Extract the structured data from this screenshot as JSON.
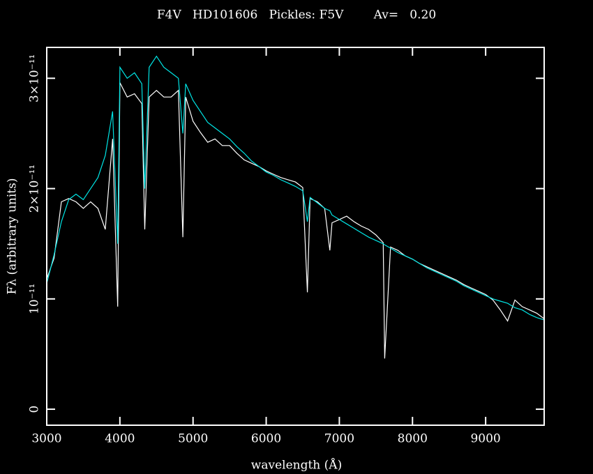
{
  "chart_data": {
    "type": "line",
    "title": "F4V   HD101606   Pickles: F5V        Av=   0.20",
    "x_label": "wavelength (Å)",
    "y_label": "Fλ (arbitrary units)",
    "xlim": [
      3000,
      9800
    ],
    "ylim": [
      -1.45e-12,
      3.28e-11
    ],
    "xticks": [
      3000,
      4000,
      5000,
      6000,
      7000,
      8000,
      9000
    ],
    "yticks": [
      0,
      {
        "value": 1e-11,
        "label": "10⁻¹¹"
      },
      {
        "value": 2e-11,
        "label": "2×10⁻¹¹"
      },
      {
        "value": 3e-11,
        "label": "3×10⁻¹¹"
      }
    ],
    "x": [
      3000,
      3100,
      3200,
      3300,
      3400,
      3500,
      3600,
      3700,
      3800,
      3900,
      3970,
      4000,
      4100,
      4200,
      4300,
      4340,
      4400,
      4500,
      4600,
      4700,
      4800,
      4861,
      4900,
      5000,
      5100,
      5200,
      5300,
      5400,
      5500,
      5600,
      5700,
      5800,
      5900,
      6000,
      6100,
      6200,
      6300,
      6400,
      6500,
      6563,
      6600,
      6700,
      6800,
      6870,
      6900,
      7000,
      7100,
      7200,
      7300,
      7400,
      7500,
      7600,
      7620,
      7700,
      7800,
      7900,
      8000,
      8100,
      8200,
      8300,
      8400,
      8500,
      8600,
      8700,
      8800,
      8900,
      9000,
      9100,
      9200,
      9300,
      9400,
      9500,
      9600,
      9700,
      9800
    ],
    "series": [
      {
        "color": "#ffffff",
        "values": [
          1.18e-11,
          1.37e-11,
          1.88e-11,
          1.91e-11,
          1.88e-11,
          1.82e-11,
          1.88e-11,
          1.82e-11,
          1.63e-11,
          2.45e-11,
          9.3e-12,
          2.96e-11,
          2.83e-11,
          2.86e-11,
          2.77e-11,
          1.63e-11,
          2.83e-11,
          2.89e-11,
          2.83e-11,
          2.83e-11,
          2.89e-11,
          1.56e-11,
          2.83e-11,
          2.61e-11,
          2.51e-11,
          2.42e-11,
          2.45e-11,
          2.39e-11,
          2.39e-11,
          2.32e-11,
          2.26e-11,
          2.23e-11,
          2.2e-11,
          2.16e-11,
          2.13e-11,
          2.1e-11,
          2.08e-11,
          2.06e-11,
          2.01e-11,
          1.06e-11,
          1.91e-11,
          1.88e-11,
          1.82e-11,
          1.44e-11,
          1.69e-11,
          1.72e-11,
          1.75e-11,
          1.7e-11,
          1.66e-11,
          1.63e-11,
          1.58e-11,
          1.51e-11,
          4.6e-12,
          1.47e-11,
          1.44e-11,
          1.39e-11,
          1.36e-11,
          1.32e-11,
          1.29e-11,
          1.26e-11,
          1.23e-11,
          1.2e-11,
          1.17e-11,
          1.13e-11,
          1.1e-11,
          1.07e-11,
          1.04e-11,
          9.9e-12,
          9e-12,
          8e-12,
          9.9e-12,
          9.3e-12,
          9e-12,
          8.7e-12,
          8.2e-12
        ]
      },
      {
        "color": "#00e5e5",
        "values": [
          1.14e-11,
          1.4e-11,
          1.7e-11,
          1.9e-11,
          1.95e-11,
          1.9e-11,
          2e-11,
          2.1e-11,
          2.3e-11,
          2.7e-11,
          1.5e-11,
          3.1e-11,
          3e-11,
          3.05e-11,
          2.95e-11,
          2e-11,
          3.1e-11,
          3.2e-11,
          3.1e-11,
          3.05e-11,
          3e-11,
          2.5e-11,
          2.95e-11,
          2.8e-11,
          2.7e-11,
          2.6e-11,
          2.55e-11,
          2.5e-11,
          2.45e-11,
          2.38e-11,
          2.32e-11,
          2.25e-11,
          2.2e-11,
          2.15e-11,
          2.12e-11,
          2.08e-11,
          2.05e-11,
          2.02e-11,
          1.98e-11,
          1.7e-11,
          1.92e-11,
          1.87e-11,
          1.82e-11,
          1.8e-11,
          1.76e-11,
          1.72e-11,
          1.68e-11,
          1.64e-11,
          1.6e-11,
          1.56e-11,
          1.53e-11,
          1.5e-11,
          1.49e-11,
          1.46e-11,
          1.42e-11,
          1.39e-11,
          1.36e-11,
          1.32e-11,
          1.28e-11,
          1.25e-11,
          1.22e-11,
          1.19e-11,
          1.16e-11,
          1.12e-11,
          1.09e-11,
          1.06e-11,
          1.03e-11,
          1e-11,
          9.8e-12,
          9.6e-12,
          9.2e-12,
          9e-12,
          8.6e-12,
          8.3e-12,
          8.1e-12
        ]
      }
    ]
  }
}
